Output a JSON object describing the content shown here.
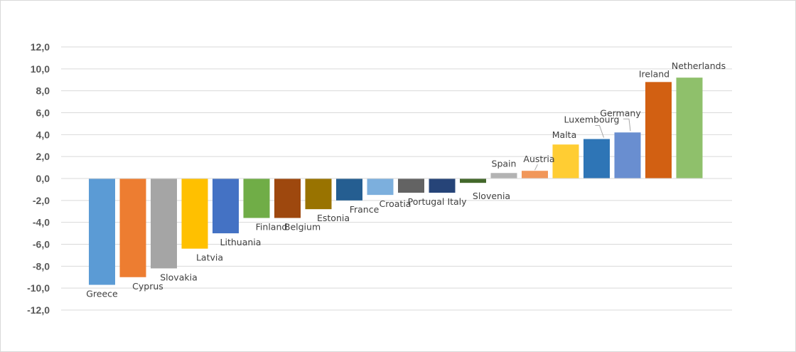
{
  "chart_data": {
    "type": "bar",
    "categories": [
      "Greece",
      "Cyprus",
      "Slovakia",
      "Latvia",
      "Lithuania",
      "Finland",
      "Belgium",
      "Estonia",
      "France",
      "Croatia",
      "Portugal",
      "Italy",
      "Slovenia",
      "Spain",
      "Austria",
      "Malta",
      "Luxembourg",
      "Germany",
      "Ireland",
      "Netherlands"
    ],
    "values": [
      -9.7,
      -9.0,
      -8.2,
      -6.4,
      -5.0,
      -3.6,
      -3.6,
      -2.8,
      -2.0,
      -1.5,
      -1.3,
      -1.3,
      -0.4,
      0.5,
      0.7,
      3.1,
      3.6,
      4.2,
      8.8,
      9.2
    ],
    "colors": [
      "#5b9bd5",
      "#ed7d31",
      "#a5a5a5",
      "#ffc000",
      "#4472c4",
      "#70ad47",
      "#9e480e",
      "#997300",
      "#255e91",
      "#7cafdd",
      "#636363",
      "#264478",
      "#43682b",
      "#b3b3b3",
      "#f1975a",
      "#ffcd33",
      "#2e75b6",
      "#698ed0",
      "#d26012",
      "#8fc06b"
    ],
    "yticks": [
      "12,0",
      "10,0",
      "8,0",
      "6,0",
      "4,0",
      "2,0",
      "0,0",
      "-2,0",
      "-4,0",
      "-6,0",
      "-8,0",
      "-10,0",
      "-12,0"
    ],
    "ylim": [
      -12,
      12
    ],
    "grid": true,
    "legend": "none",
    "title": "",
    "xlabel": "",
    "ylabel": ""
  }
}
